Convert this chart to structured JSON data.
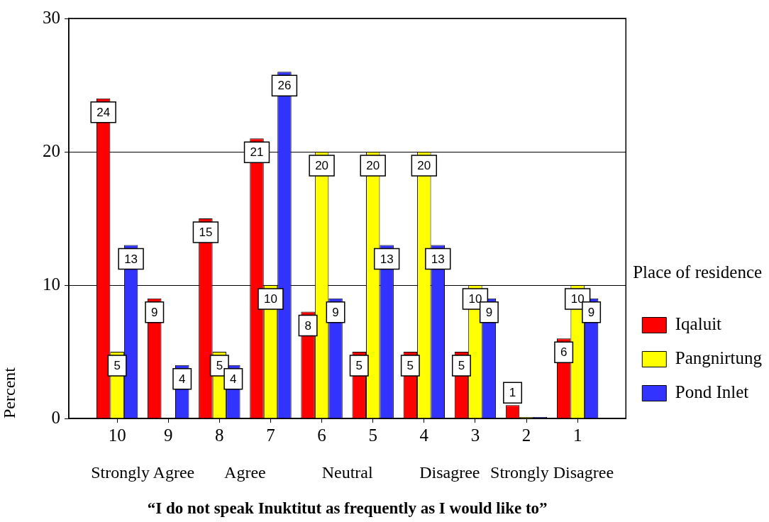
{
  "chart_data": {
    "type": "bar",
    "xlabel": "“I do not speak Inuktitut as frequently as I would like to”",
    "ylabel": "Percent",
    "legend_title": "Place of residence",
    "annotations": [
      "Strongly Agree",
      "Agree",
      "Neutral",
      "Disagree",
      "Strongly Disagree"
    ],
    "categories": [
      "10",
      "9",
      "8",
      "7",
      "6",
      "5",
      "4",
      "3",
      "2",
      "1"
    ],
    "series": [
      {
        "name": "Iqaluit",
        "color": "#ff0000",
        "values": [
          24,
          9,
          15,
          21,
          8,
          5,
          5,
          5,
          1,
          6
        ],
        "value_labels": [
          "24",
          "9",
          "15",
          "21",
          "8",
          "5",
          "5",
          "5",
          "1",
          "6"
        ]
      },
      {
        "name": "Pangnirtung",
        "color": "#ffff00",
        "values": [
          5,
          null,
          5,
          10,
          20,
          20,
          20,
          10,
          0,
          10
        ],
        "value_labels": [
          "5",
          null,
          "5",
          "10",
          "20",
          "20",
          "20",
          "10",
          null,
          "10"
        ]
      },
      {
        "name": "Pond Inlet",
        "color": "#3333ff",
        "values": [
          13,
          4,
          4,
          26,
          9,
          13,
          13,
          9,
          0,
          9
        ],
        "value_labels": [
          "13",
          "4",
          "4",
          "26",
          "9",
          "13",
          "13",
          "9",
          null,
          "9"
        ]
      }
    ],
    "ylim": [
      0,
      30
    ],
    "yticks": [
      0,
      10,
      20,
      30
    ],
    "grid": "y",
    "legend": "right"
  }
}
